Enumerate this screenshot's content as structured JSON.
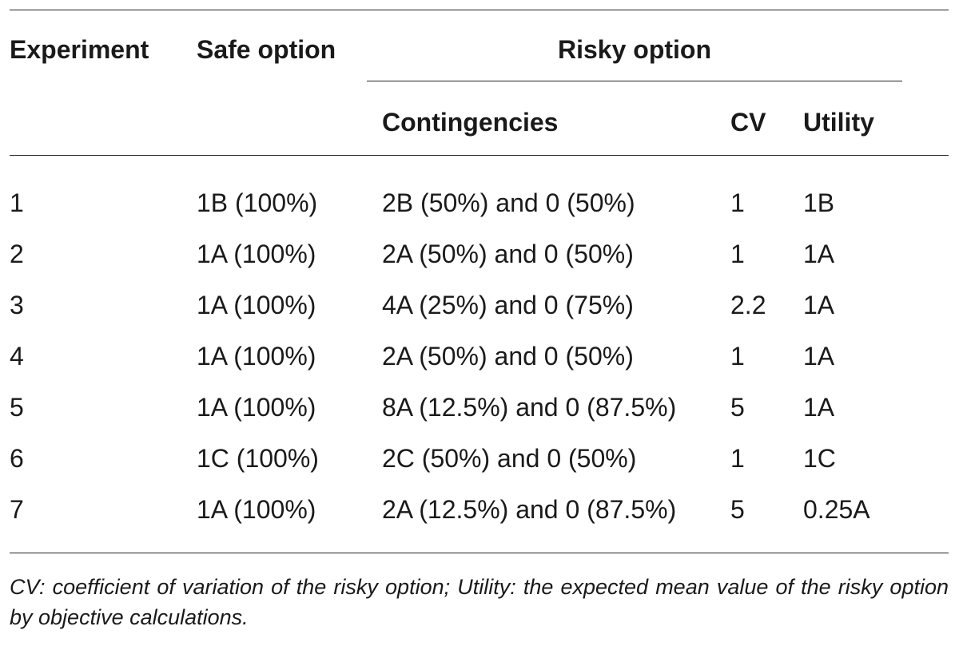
{
  "table": {
    "headers": {
      "experiment": "Experiment",
      "safe_option": "Safe option",
      "risky_option": "Risky option",
      "contingencies": "Contingencies",
      "cv": "CV",
      "utility": "Utility"
    },
    "rows": [
      {
        "experiment": "1",
        "safe": "1B (100%)",
        "contingencies": "2B (50%) and 0 (50%)",
        "cv": "1",
        "utility": "1B"
      },
      {
        "experiment": "2",
        "safe": "1A (100%)",
        "contingencies": "2A (50%) and 0 (50%)",
        "cv": "1",
        "utility": "1A"
      },
      {
        "experiment": "3",
        "safe": "1A (100%)",
        "contingencies": "4A (25%) and 0 (75%)",
        "cv": "2.2",
        "utility": "1A"
      },
      {
        "experiment": "4",
        "safe": "1A (100%)",
        "contingencies": "2A (50%) and 0 (50%)",
        "cv": "1",
        "utility": "1A"
      },
      {
        "experiment": "5",
        "safe": "1A (100%)",
        "contingencies": "8A (12.5%) and 0 (87.5%)",
        "cv": "5",
        "utility": "1A"
      },
      {
        "experiment": "6",
        "safe": "1C (100%)",
        "contingencies": "2C (50%) and 0 (50%)",
        "cv": "1",
        "utility": "1C"
      },
      {
        "experiment": "7",
        "safe": "1A (100%)",
        "contingencies": "2A (12.5%) and 0 (87.5%)",
        "cv": "5",
        "utility": "0.25A"
      }
    ],
    "footnote": "CV: coefficient of variation of the risky option; Utility: the expected mean value of the risky option by objective calculations."
  }
}
